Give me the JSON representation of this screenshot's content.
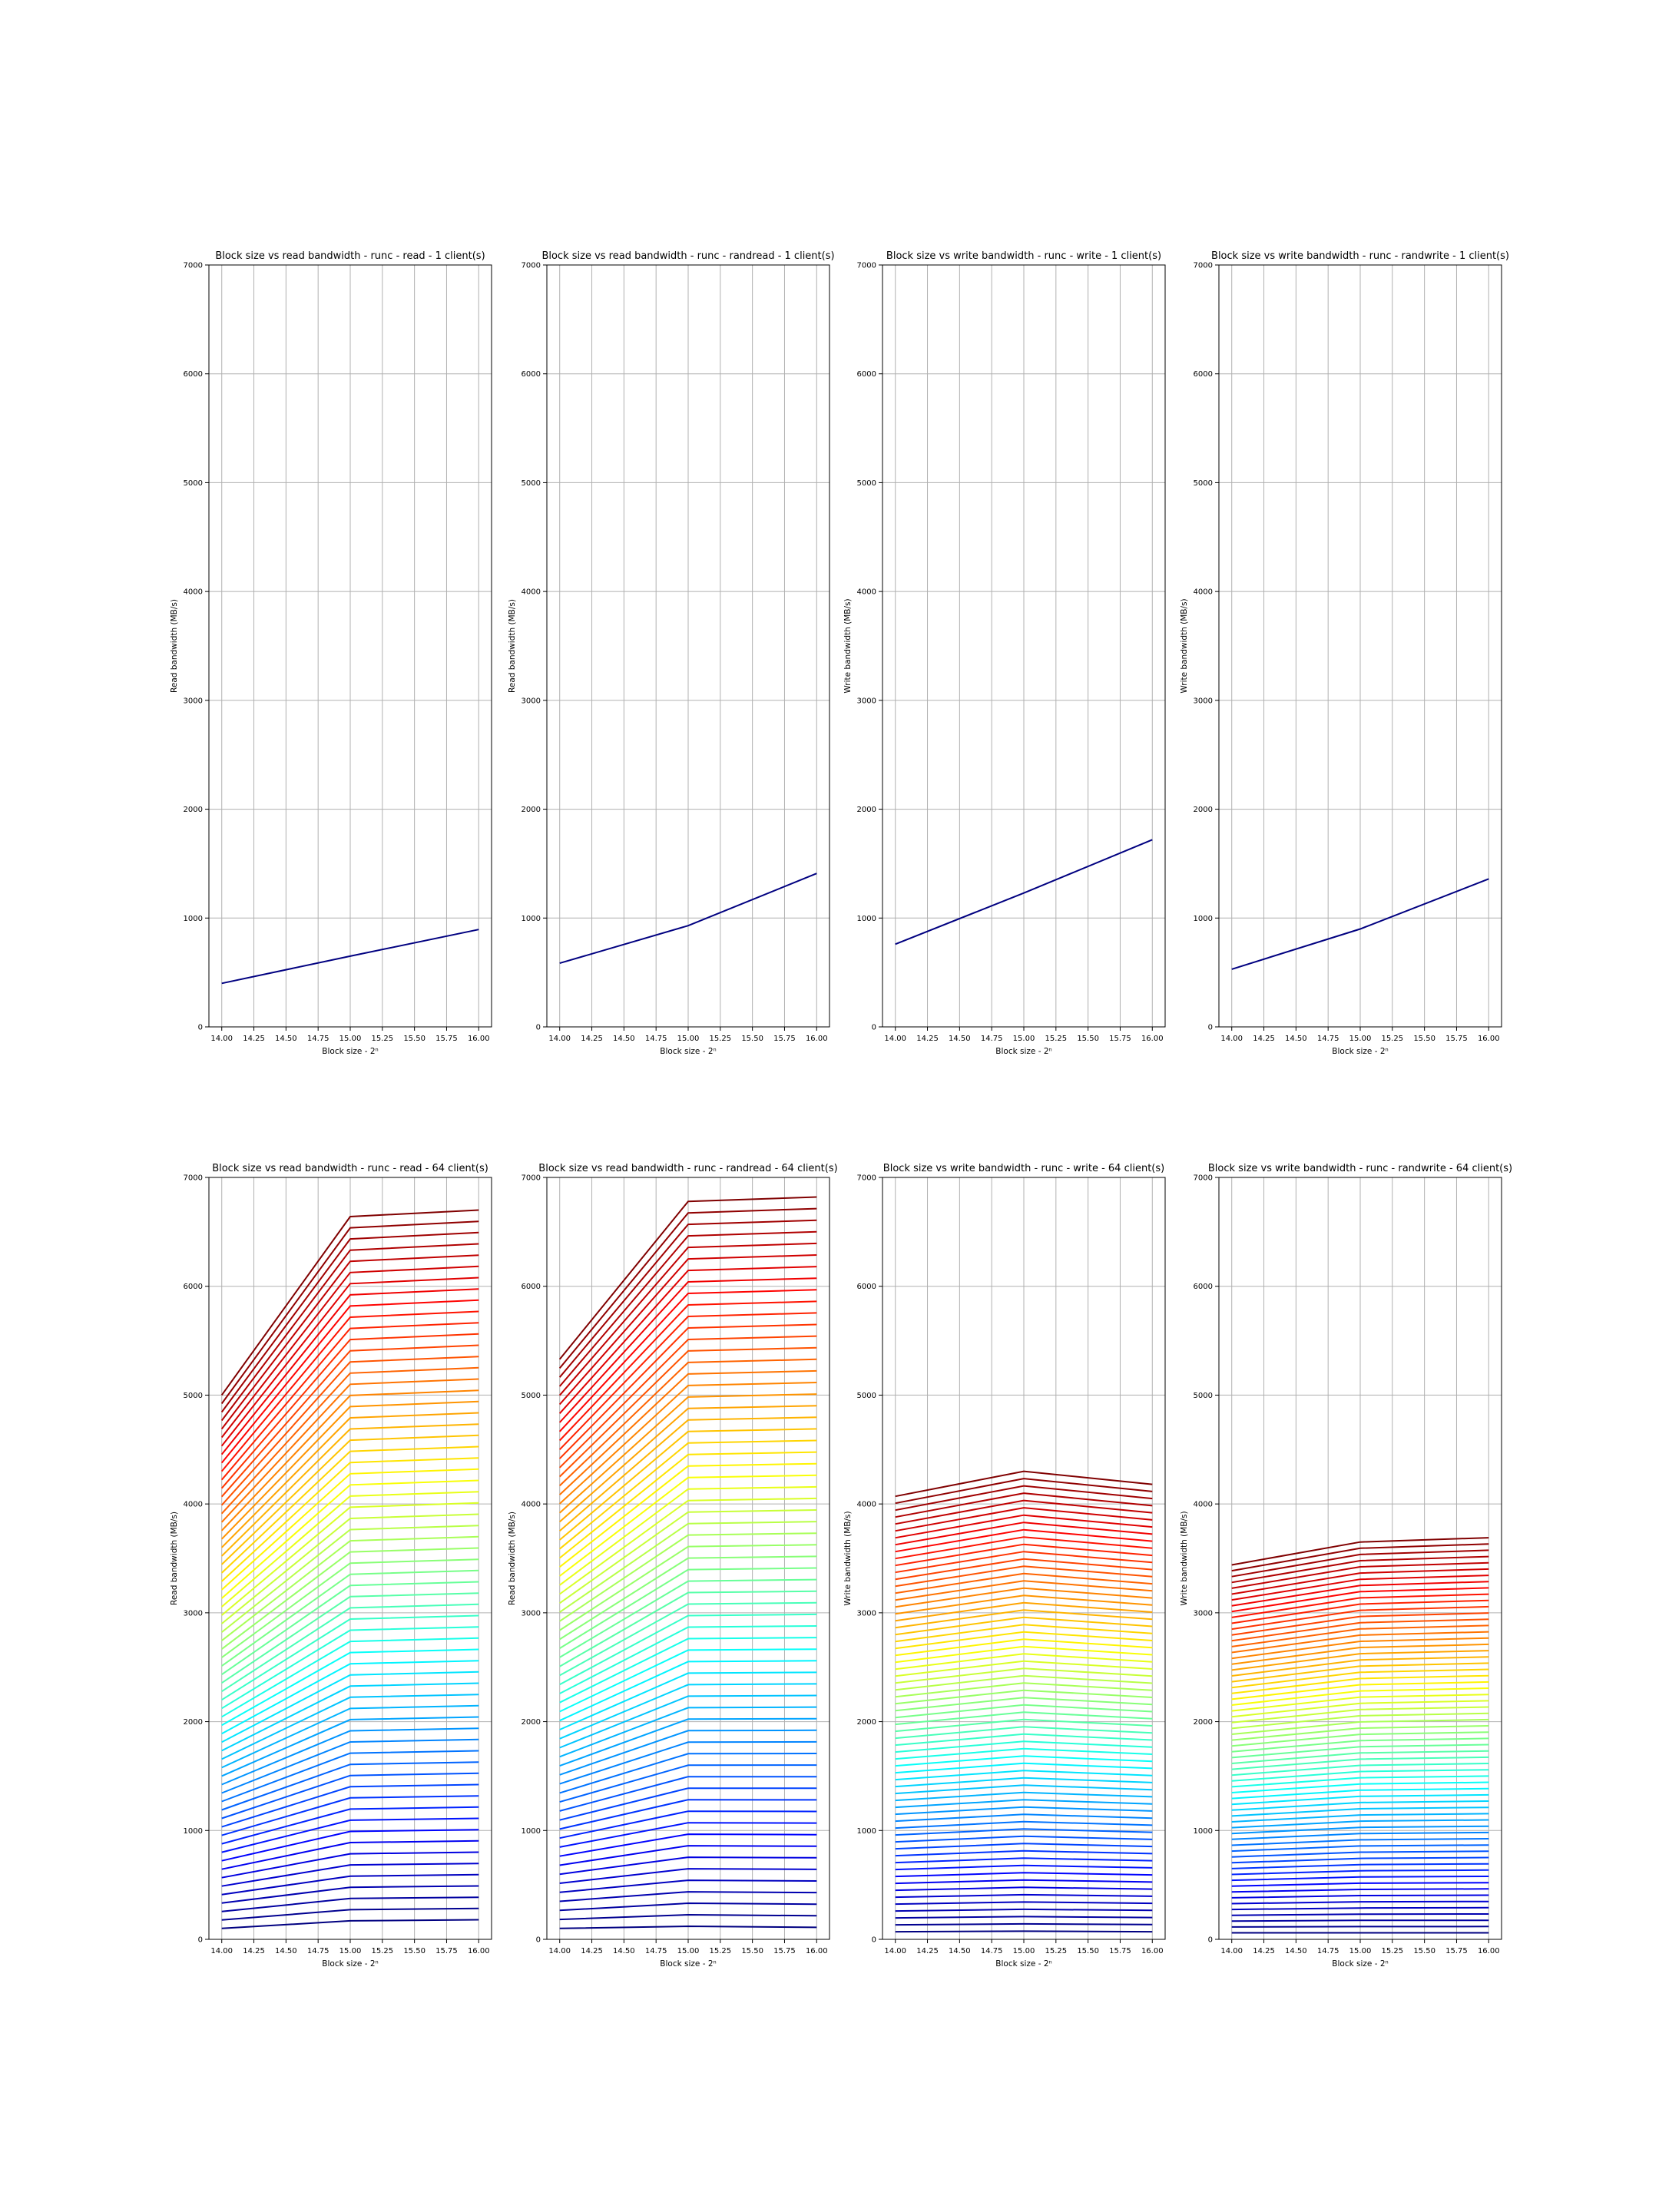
{
  "chart_data": [
    {
      "type": "line",
      "title": "Block size vs read bandwidth - runc - read - 1 client(s)",
      "xlabel": "Block size - 2ⁿ",
      "ylabel": "Read bandwidth (MB/s)",
      "x": [
        14,
        15,
        16
      ],
      "xticks": [
        "14.00",
        "14.25",
        "14.50",
        "14.75",
        "15.00",
        "15.25",
        "15.50",
        "15.75",
        "16.00"
      ],
      "yticks": [
        "0",
        "1000",
        "2000",
        "3000",
        "4000",
        "5000",
        "6000",
        "7000"
      ],
      "xlim": [
        13.9,
        16.1
      ],
      "ylim": [
        0,
        7000
      ],
      "grid": true,
      "colormap": "jet",
      "series": [
        {
          "values": [
            400,
            650,
            895
          ]
        }
      ]
    },
    {
      "type": "line",
      "title": "Block size vs read bandwidth - runc - randread - 1 client(s)",
      "xlabel": "Block size - 2ⁿ",
      "ylabel": "Read bandwidth (MB/s)",
      "x": [
        14,
        15,
        16
      ],
      "xticks": [
        "14.00",
        "14.25",
        "14.50",
        "14.75",
        "15.00",
        "15.25",
        "15.50",
        "15.75",
        "16.00"
      ],
      "yticks": [
        "0",
        "1000",
        "2000",
        "3000",
        "4000",
        "5000",
        "6000",
        "7000"
      ],
      "xlim": [
        13.9,
        16.1
      ],
      "ylim": [
        0,
        7000
      ],
      "grid": true,
      "colormap": "jet",
      "series": [
        {
          "values": [
            585,
            930,
            1410
          ]
        }
      ]
    },
    {
      "type": "line",
      "title": "Block size vs write bandwidth - runc - write - 1 client(s)",
      "xlabel": "Block size - 2ⁿ",
      "ylabel": "Write bandwidth (MB/s)",
      "x": [
        14,
        15,
        16
      ],
      "xticks": [
        "14.00",
        "14.25",
        "14.50",
        "14.75",
        "15.00",
        "15.25",
        "15.50",
        "15.75",
        "16.00"
      ],
      "yticks": [
        "0",
        "1000",
        "2000",
        "3000",
        "4000",
        "5000",
        "6000",
        "7000"
      ],
      "xlim": [
        13.9,
        16.1
      ],
      "ylim": [
        0,
        7000
      ],
      "grid": true,
      "colormap": "jet",
      "series": [
        {
          "values": [
            760,
            1230,
            1720
          ]
        }
      ]
    },
    {
      "type": "line",
      "title": "Block size vs write bandwidth - runc - randwrite - 1 client(s)",
      "xlabel": "Block size - 2ⁿ",
      "ylabel": "Write bandwidth (MB/s)",
      "x": [
        14,
        15,
        16
      ],
      "xticks": [
        "14.00",
        "14.25",
        "14.50",
        "14.75",
        "15.00",
        "15.25",
        "15.50",
        "15.75",
        "16.00"
      ],
      "yticks": [
        "0",
        "1000",
        "2000",
        "3000",
        "4000",
        "5000",
        "6000",
        "7000"
      ],
      "xlim": [
        13.9,
        16.1
      ],
      "ylim": [
        0,
        7000
      ],
      "grid": true,
      "colormap": "jet",
      "series": [
        {
          "values": [
            530,
            900,
            1360
          ]
        }
      ]
    },
    {
      "type": "line",
      "title": "Block size vs read bandwidth - runc - read - 64 client(s)",
      "xlabel": "Block size - 2ⁿ",
      "ylabel": "Read bandwidth (MB/s)",
      "x": [
        14,
        15,
        16
      ],
      "xticks": [
        "14.00",
        "14.25",
        "14.50",
        "14.75",
        "15.00",
        "15.25",
        "15.50",
        "15.75",
        "16.00"
      ],
      "yticks": [
        "0",
        "1000",
        "2000",
        "3000",
        "4000",
        "5000",
        "6000",
        "7000"
      ],
      "xlim": [
        13.9,
        16.1
      ],
      "ylim": [
        0,
        7000
      ],
      "grid": true,
      "colormap": "jet",
      "series_count": 64,
      "series_lowest": [
        100,
        170,
        180
      ],
      "series_highest": [
        5000,
        6640,
        6700
      ]
    },
    {
      "type": "line",
      "title": "Block size vs read bandwidth - runc - randread - 64 client(s)",
      "xlabel": "Block size - 2ⁿ",
      "ylabel": "Read bandwidth (MB/s)",
      "x": [
        14,
        15,
        16
      ],
      "xticks": [
        "14.00",
        "14.25",
        "14.50",
        "14.75",
        "15.00",
        "15.25",
        "15.50",
        "15.75",
        "16.00"
      ],
      "yticks": [
        "0",
        "1000",
        "2000",
        "3000",
        "4000",
        "5000",
        "6000",
        "7000"
      ],
      "xlim": [
        13.9,
        16.1
      ],
      "ylim": [
        0,
        7000
      ],
      "grid": true,
      "colormap": "jet",
      "series_count": 64,
      "series_lowest": [
        100,
        120,
        110
      ],
      "series_highest": [
        5330,
        6780,
        6820
      ]
    },
    {
      "type": "line",
      "title": "Block size vs write bandwidth - runc - write - 64 client(s)",
      "xlabel": "Block size - 2ⁿ",
      "ylabel": "Write bandwidth (MB/s)",
      "x": [
        14,
        15,
        16
      ],
      "xticks": [
        "14.00",
        "14.25",
        "14.50",
        "14.75",
        "15.00",
        "15.25",
        "15.50",
        "15.75",
        "16.00"
      ],
      "yticks": [
        "0",
        "1000",
        "2000",
        "3000",
        "4000",
        "5000",
        "6000",
        "7000"
      ],
      "xlim": [
        13.9,
        16.1
      ],
      "ylim": [
        0,
        7000
      ],
      "grid": true,
      "colormap": "jet",
      "series_count": 64,
      "series_lowest": [
        70,
        75,
        70
      ],
      "series_highest": [
        4070,
        4300,
        4180
      ]
    },
    {
      "type": "line",
      "title": "Block size vs write bandwidth - runc - randwrite - 64 client(s)",
      "xlabel": "Block size - 2ⁿ",
      "ylabel": "Write bandwidth (MB/s)",
      "x": [
        14,
        15,
        16
      ],
      "xticks": [
        "14.00",
        "14.25",
        "14.50",
        "14.75",
        "15.00",
        "15.25",
        "15.50",
        "15.75",
        "16.00"
      ],
      "yticks": [
        "0",
        "1000",
        "2000",
        "3000",
        "4000",
        "5000",
        "6000",
        "7000"
      ],
      "xlim": [
        13.9,
        16.1
      ],
      "ylim": [
        0,
        7000
      ],
      "grid": true,
      "colormap": "jet",
      "series_count": 64,
      "series_lowest": [
        60,
        60,
        60
      ],
      "series_highest": [
        3440,
        3650,
        3690
      ]
    }
  ]
}
